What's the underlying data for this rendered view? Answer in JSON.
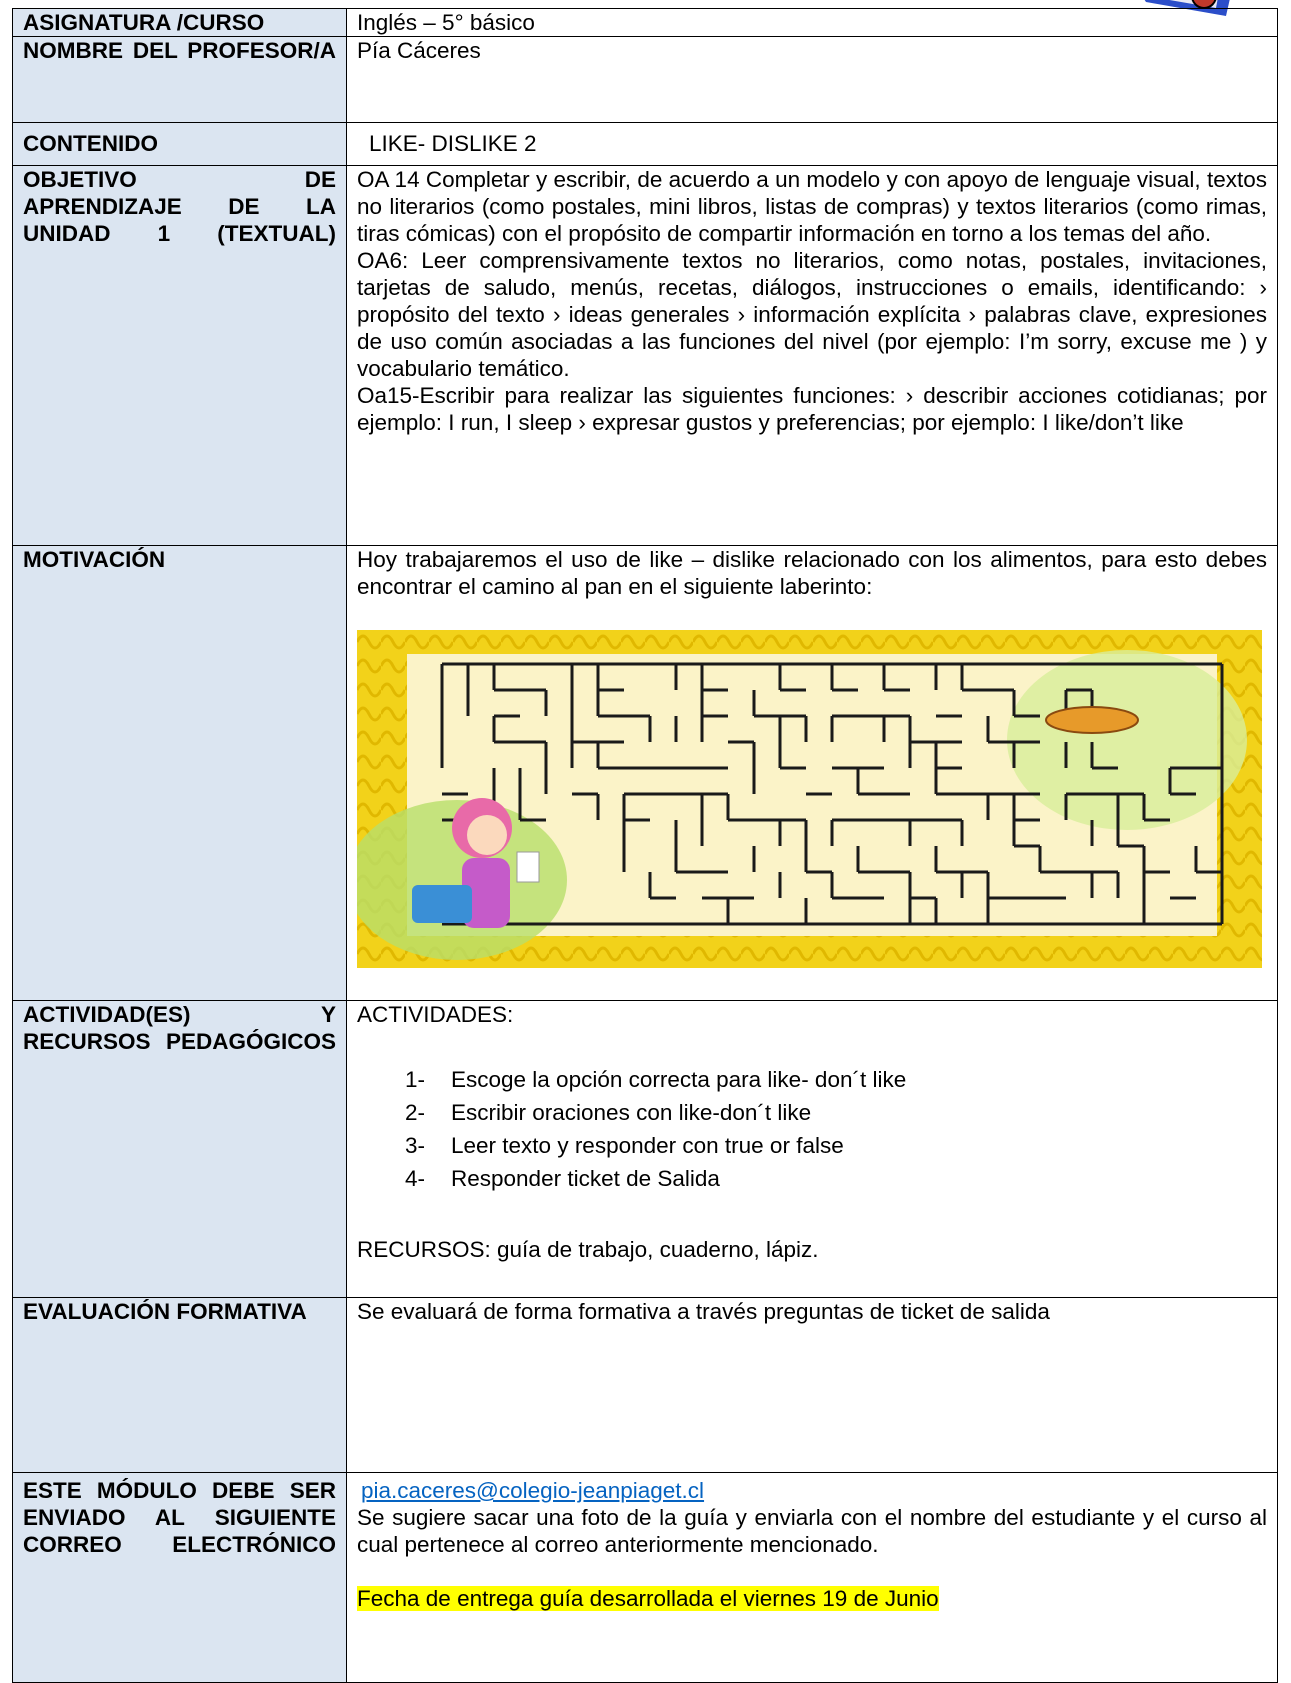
{
  "table": {
    "rows": [
      {
        "label": "ASIGNATURA /CURSO",
        "content": "Inglés – 5° básico"
      },
      {
        "label": "NOMBRE DEL PROFESOR/A",
        "content": "Pía Cáceres"
      },
      {
        "label": "CONTENIDO",
        "content": "LIKE- DISLIKE 2"
      },
      {
        "label": "OBJETIVO DE APRENDIZAJE DE LA UNIDAD 1 (TEXTUAL)",
        "paragraphs": [
          "OA 14 Completar y escribir, de acuerdo a un modelo y con apoyo de lenguaje visual, textos no literarios (como postales, mini libros, listas de compras) y textos literarios (como rimas, tiras cómicas) con el propósito de compartir información en torno a los temas del año.",
          "OA6:  Leer comprensivamente textos no literarios, como notas, postales, invitaciones, tarjetas de saludo, menús, recetas, diálogos, instrucciones o emails, identificando: › propósito del texto › ideas generales › información explícita › palabras clave, expresiones de uso común asociadas a las funciones del nivel (por ejemplo: I’m sorry, excuse me ) y vocabulario temático.",
          "Oa15-Escribir para realizar las siguientes funciones: › describir acciones cotidianas; por ejemplo: I run, I sleep › expresar gustos y preferencias; por ejemplo: I like/don’t like"
        ]
      },
      {
        "label": "MOTIVACIÓN",
        "content": "Hoy trabajaremos el uso de like – dislike relacionado con los alimentos, para esto debes encontrar el camino al pan en el siguiente laberinto:"
      },
      {
        "label": "ACTIVIDAD(ES) Y RECURSOS PEDAGÓGICOS",
        "heading": "ACTIVIDADES:",
        "items": [
          {
            "marker": "1-",
            "text": "Escoge la opción correcta para like- don´t like"
          },
          {
            "marker": "2-",
            "text": "Escribir oraciones con like-don´t like"
          },
          {
            "marker": "3-",
            "text": "Leer texto y responder con true or false"
          },
          {
            "marker": "4-",
            "text": "Responder ticket de Salida"
          }
        ],
        "resources": "RECURSOS: guía de trabajo, cuaderno, lápiz."
      },
      {
        "label": "EVALUACIÓN FORMATIVA",
        "content": "Se evaluará de forma formativa a través preguntas de ticket de salida"
      },
      {
        "label": "ESTE MÓDULO DEBE SER ENVIADO AL SIGUIENTE CORREO ELECTRÓNICO",
        "email": "pia.caceres@colegio-jeanpiaget.cl",
        "note": "Se sugiere sacar una foto de la guía y enviarla con el nombre del estudiante y el curso al cual pertenece al correo anteriormente mencionado.",
        "deadline": "Fecha de entrega guía desarrollada el viernes 19 de Junio"
      }
    ]
  }
}
